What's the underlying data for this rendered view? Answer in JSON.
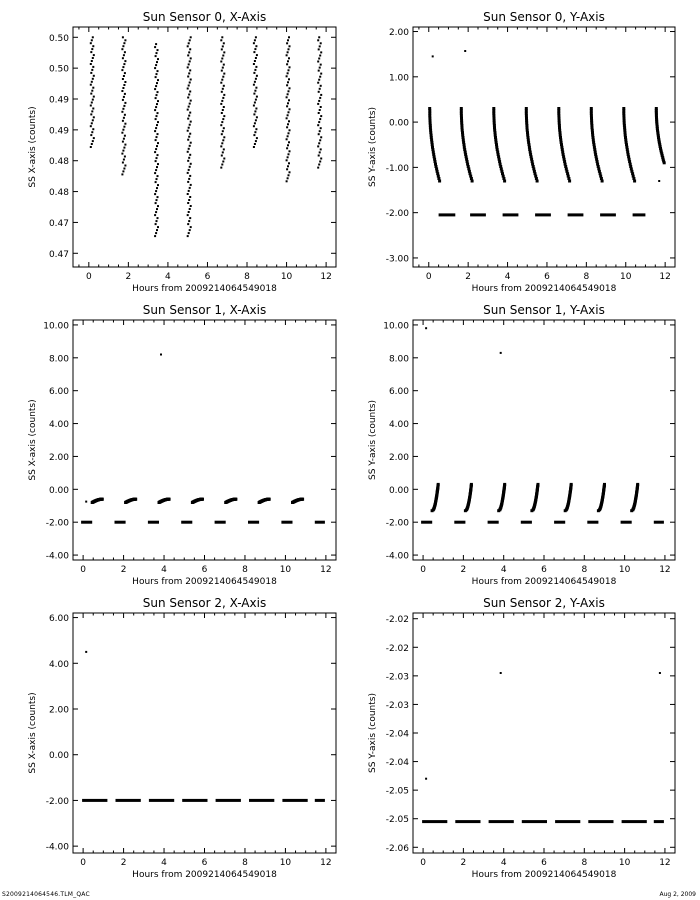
{
  "footer": {
    "file_label": "S2009214064546.TLM_QAC",
    "date_label": "Aug  2, 2009"
  },
  "chart_data": [
    {
      "type": "scatter",
      "title": "Sun Sensor 0, X-Axis",
      "xlabel": "Hours from  2009214064549018",
      "ylabel": "SS X-axis (counts)",
      "xlim": [
        -0.8,
        12.5
      ],
      "xticks": [
        0,
        2,
        4,
        6,
        8,
        10,
        12
      ],
      "ylim": [
        0.466,
        0.501
      ],
      "yticks": [
        0.468,
        0.4725,
        0.477,
        0.4815,
        0.486,
        0.4905,
        0.495,
        0.4995
      ],
      "yticklabels": [
        "0.47",
        "0.47",
        "0.48",
        "0.48",
        "0.49",
        "0.49",
        "0.50",
        "0.50"
      ],
      "segments": [
        {
          "kind": "vertical",
          "x0": 0.1,
          "x1": 0.25,
          "y0": 0.4835,
          "y1": 0.4995
        },
        {
          "kind": "vertical",
          "x0": 1.7,
          "x1": 1.85,
          "y0": 0.4795,
          "y1": 0.4995
        },
        {
          "kind": "vertical",
          "x0": 3.35,
          "x1": 3.5,
          "y0": 0.4705,
          "y1": 0.4985
        },
        {
          "kind": "vertical",
          "x0": 5.0,
          "x1": 5.15,
          "y0": 0.4705,
          "y1": 0.4995
        },
        {
          "kind": "vertical",
          "x0": 6.7,
          "x1": 6.85,
          "y0": 0.4805,
          "y1": 0.4995
        },
        {
          "kind": "vertical",
          "x0": 8.35,
          "x1": 8.5,
          "y0": 0.4835,
          "y1": 0.4995
        },
        {
          "kind": "vertical",
          "x0": 10.0,
          "x1": 10.15,
          "y0": 0.4785,
          "y1": 0.4995
        },
        {
          "kind": "vertical",
          "x0": 11.6,
          "x1": 11.75,
          "y0": 0.4805,
          "y1": 0.4995
        }
      ],
      "points": []
    },
    {
      "type": "scatter",
      "title": "Sun Sensor 0, Y-Axis",
      "xlabel": "Hours from  2009214064549018",
      "ylabel": "SS Y-axis (counts)",
      "xlim": [
        -0.8,
        12.5
      ],
      "xticks": [
        0,
        2,
        4,
        6,
        8,
        10,
        12
      ],
      "ylim": [
        -3.2,
        2.1
      ],
      "yticks": [
        -3,
        -2,
        -1,
        0,
        1,
        2
      ],
      "yticklabels": [
        "-3.00",
        "-2.00",
        "-1.00",
        "0.00",
        "1.00",
        "2.00"
      ],
      "segments": [
        {
          "kind": "curve",
          "x0": 0.05,
          "x1": 0.55,
          "y0": 0.3,
          "y1": -1.3
        },
        {
          "kind": "curve",
          "x0": 1.65,
          "x1": 2.2,
          "y0": 0.3,
          "y1": -1.3
        },
        {
          "kind": "curve",
          "x0": 3.3,
          "x1": 3.85,
          "y0": 0.3,
          "y1": -1.3
        },
        {
          "kind": "curve",
          "x0": 4.95,
          "x1": 5.5,
          "y0": 0.3,
          "y1": -1.3
        },
        {
          "kind": "curve",
          "x0": 6.6,
          "x1": 7.15,
          "y0": 0.3,
          "y1": -1.3
        },
        {
          "kind": "curve",
          "x0": 8.25,
          "x1": 8.8,
          "y0": 0.3,
          "y1": -1.3
        },
        {
          "kind": "curve",
          "x0": 9.9,
          "x1": 10.45,
          "y0": 0.3,
          "y1": -1.3
        },
        {
          "kind": "curve",
          "x0": 11.55,
          "x1": 11.95,
          "y0": 0.3,
          "y1": -0.9
        },
        {
          "kind": "dash",
          "x0": 0.5,
          "x1": 1.35,
          "y0": -2.05,
          "y1": -2.05
        },
        {
          "kind": "dash",
          "x0": 2.1,
          "x1": 2.9,
          "y0": -2.05,
          "y1": -2.05
        },
        {
          "kind": "dash",
          "x0": 3.75,
          "x1": 4.55,
          "y0": -2.05,
          "y1": -2.05
        },
        {
          "kind": "dash",
          "x0": 5.4,
          "x1": 6.2,
          "y0": -2.05,
          "y1": -2.05
        },
        {
          "kind": "dash",
          "x0": 7.05,
          "x1": 7.85,
          "y0": -2.05,
          "y1": -2.05
        },
        {
          "kind": "dash",
          "x0": 8.7,
          "x1": 9.5,
          "y0": -2.05,
          "y1": -2.05
        },
        {
          "kind": "dash",
          "x0": 10.35,
          "x1": 11.0,
          "y0": -2.05,
          "y1": -2.05
        }
      ],
      "points": [
        [
          0.2,
          1.45
        ],
        [
          1.85,
          1.57
        ],
        [
          11.7,
          -1.3
        ]
      ]
    },
    {
      "type": "scatter",
      "title": "Sun Sensor 1, X-Axis",
      "xlabel": "Hours from  2009214064549018",
      "ylabel": "SS X-axis (counts)",
      "xlim": [
        -0.5,
        12.5
      ],
      "xticks": [
        0,
        2,
        4,
        6,
        8,
        10,
        12
      ],
      "ylim": [
        -4.3,
        10.3
      ],
      "yticks": [
        -4,
        -2,
        0,
        2,
        4,
        6,
        8,
        10
      ],
      "yticklabels": [
        "-4.00",
        "-2.00",
        "0.00",
        "2.00",
        "4.00",
        "6.00",
        "8.00",
        "10.00"
      ],
      "segments": [
        {
          "kind": "arc",
          "x0": 0.45,
          "x1": 0.95,
          "y0": -0.8,
          "y1": -0.6
        },
        {
          "kind": "arc",
          "x0": 2.1,
          "x1": 2.6,
          "y0": -0.8,
          "y1": -0.6
        },
        {
          "kind": "arc",
          "x0": 3.75,
          "x1": 4.25,
          "y0": -0.8,
          "y1": -0.6
        },
        {
          "kind": "arc",
          "x0": 5.4,
          "x1": 5.9,
          "y0": -0.8,
          "y1": -0.6
        },
        {
          "kind": "arc",
          "x0": 7.05,
          "x1": 7.55,
          "y0": -0.8,
          "y1": -0.6
        },
        {
          "kind": "arc",
          "x0": 8.7,
          "x1": 9.2,
          "y0": -0.8,
          "y1": -0.6
        },
        {
          "kind": "arc",
          "x0": 10.35,
          "x1": 10.85,
          "y0": -0.8,
          "y1": -0.6
        },
        {
          "kind": "dash",
          "x0": -0.1,
          "x1": 0.45,
          "y0": -2.0,
          "y1": -2.0
        },
        {
          "kind": "dash",
          "x0": 1.55,
          "x1": 2.1,
          "y0": -2.0,
          "y1": -2.0
        },
        {
          "kind": "dash",
          "x0": 3.2,
          "x1": 3.75,
          "y0": -2.0,
          "y1": -2.0
        },
        {
          "kind": "dash",
          "x0": 4.85,
          "x1": 5.4,
          "y0": -2.0,
          "y1": -2.0
        },
        {
          "kind": "dash",
          "x0": 6.5,
          "x1": 7.05,
          "y0": -2.0,
          "y1": -2.0
        },
        {
          "kind": "dash",
          "x0": 8.15,
          "x1": 8.7,
          "y0": -2.0,
          "y1": -2.0
        },
        {
          "kind": "dash",
          "x0": 9.8,
          "x1": 10.35,
          "y0": -2.0,
          "y1": -2.0
        },
        {
          "kind": "dash",
          "x0": 11.45,
          "x1": 11.95,
          "y0": -2.0,
          "y1": -2.0
        }
      ],
      "points": [
        [
          3.85,
          8.2
        ],
        [
          0.15,
          -0.75
        ]
      ]
    },
    {
      "type": "scatter",
      "title": "Sun Sensor 1, Y-Axis",
      "xlabel": "Hours from  2009214064549018",
      "ylabel": "SS Y-axis (counts)",
      "xlim": [
        -0.5,
        12.5
      ],
      "xticks": [
        0,
        2,
        4,
        6,
        8,
        10,
        12
      ],
      "ylim": [
        -4.3,
        10.3
      ],
      "yticks": [
        -4,
        -2,
        0,
        2,
        4,
        6,
        8,
        10
      ],
      "yticklabels": [
        "-4.00",
        "-2.00",
        "0.00",
        "2.00",
        "4.00",
        "6.00",
        "8.00",
        "10.00"
      ],
      "segments": [
        {
          "kind": "rise",
          "x0": 0.45,
          "x1": 0.75,
          "y0": -1.3,
          "y1": 0.3
        },
        {
          "kind": "rise",
          "x0": 2.1,
          "x1": 2.4,
          "y0": -1.3,
          "y1": 0.3
        },
        {
          "kind": "rise",
          "x0": 3.75,
          "x1": 4.05,
          "y0": -1.3,
          "y1": 0.3
        },
        {
          "kind": "rise",
          "x0": 5.4,
          "x1": 5.7,
          "y0": -1.3,
          "y1": 0.3
        },
        {
          "kind": "rise",
          "x0": 7.05,
          "x1": 7.35,
          "y0": -1.3,
          "y1": 0.3
        },
        {
          "kind": "rise",
          "x0": 8.7,
          "x1": 9.0,
          "y0": -1.3,
          "y1": 0.3
        },
        {
          "kind": "rise",
          "x0": 10.35,
          "x1": 10.65,
          "y0": -1.3,
          "y1": 0.3
        },
        {
          "kind": "dash",
          "x0": -0.1,
          "x1": 0.45,
          "y0": -2.0,
          "y1": -2.0
        },
        {
          "kind": "dash",
          "x0": 1.55,
          "x1": 2.1,
          "y0": -2.0,
          "y1": -2.0
        },
        {
          "kind": "dash",
          "x0": 3.2,
          "x1": 3.75,
          "y0": -2.0,
          "y1": -2.0
        },
        {
          "kind": "dash",
          "x0": 4.85,
          "x1": 5.4,
          "y0": -2.0,
          "y1": -2.0
        },
        {
          "kind": "dash",
          "x0": 6.5,
          "x1": 7.05,
          "y0": -2.0,
          "y1": -2.0
        },
        {
          "kind": "dash",
          "x0": 8.15,
          "x1": 8.7,
          "y0": -2.0,
          "y1": -2.0
        },
        {
          "kind": "dash",
          "x0": 9.8,
          "x1": 10.35,
          "y0": -2.0,
          "y1": -2.0
        },
        {
          "kind": "dash",
          "x0": 11.45,
          "x1": 11.95,
          "y0": -2.0,
          "y1": -2.0
        }
      ],
      "points": [
        [
          0.15,
          9.8
        ],
        [
          3.85,
          8.3
        ]
      ]
    },
    {
      "type": "scatter",
      "title": "Sun Sensor 2, X-Axis",
      "xlabel": "Hours from  2009214064549018",
      "ylabel": "SS X-axis (counts)",
      "xlim": [
        -0.5,
        12.5
      ],
      "xticks": [
        0,
        2,
        4,
        6,
        8,
        10,
        12
      ],
      "ylim": [
        -4.3,
        6.2
      ],
      "yticks": [
        -4,
        -2,
        0,
        2,
        4,
        6
      ],
      "yticklabels": [
        "-4.00",
        "-2.00",
        "0.00",
        "2.00",
        "4.00",
        "6.00"
      ],
      "segments": [
        {
          "kind": "dash",
          "x0": -0.05,
          "x1": 1.2,
          "y0": -2.0,
          "y1": -2.0
        },
        {
          "kind": "dash",
          "x0": 1.6,
          "x1": 2.85,
          "y0": -2.0,
          "y1": -2.0
        },
        {
          "kind": "dash",
          "x0": 3.25,
          "x1": 4.5,
          "y0": -2.0,
          "y1": -2.0
        },
        {
          "kind": "dash",
          "x0": 4.9,
          "x1": 6.15,
          "y0": -2.0,
          "y1": -2.0
        },
        {
          "kind": "dash",
          "x0": 6.55,
          "x1": 7.8,
          "y0": -2.0,
          "y1": -2.0
        },
        {
          "kind": "dash",
          "x0": 8.2,
          "x1": 9.45,
          "y0": -2.0,
          "y1": -2.0
        },
        {
          "kind": "dash",
          "x0": 9.85,
          "x1": 11.1,
          "y0": -2.0,
          "y1": -2.0
        },
        {
          "kind": "dash",
          "x0": 11.45,
          "x1": 11.95,
          "y0": -2.0,
          "y1": -2.0
        }
      ],
      "points": [
        [
          0.15,
          4.5
        ]
      ]
    },
    {
      "type": "scatter",
      "title": "Sun Sensor 2, Y-Axis",
      "xlabel": "Hours from  2009214064549018",
      "ylabel": "SS Y-axis (counts)",
      "xlim": [
        -0.5,
        12.5
      ],
      "xticks": [
        0,
        2,
        4,
        6,
        8,
        10,
        12
      ],
      "ylim": [
        -2.061,
        -2.019
      ],
      "yticks": [
        -2.06,
        -2.055,
        -2.05,
        -2.045,
        -2.04,
        -2.035,
        -2.03,
        -2.025,
        -2.02
      ],
      "yticklabels": [
        "-2.06",
        "-2.05",
        "-2.05",
        "-2.04",
        "-2.04",
        "-2.03",
        "-2.03",
        "-2.02",
        "-2.02"
      ],
      "segments": [
        {
          "kind": "dash",
          "x0": -0.05,
          "x1": 1.2,
          "y0": -2.0555,
          "y1": -2.0555
        },
        {
          "kind": "dash",
          "x0": 1.6,
          "x1": 2.85,
          "y0": -2.0555,
          "y1": -2.0555
        },
        {
          "kind": "dash",
          "x0": 3.25,
          "x1": 4.5,
          "y0": -2.0555,
          "y1": -2.0555
        },
        {
          "kind": "dash",
          "x0": 4.9,
          "x1": 6.15,
          "y0": -2.0555,
          "y1": -2.0555
        },
        {
          "kind": "dash",
          "x0": 6.55,
          "x1": 7.8,
          "y0": -2.0555,
          "y1": -2.0555
        },
        {
          "kind": "dash",
          "x0": 8.2,
          "x1": 9.45,
          "y0": -2.0555,
          "y1": -2.0555
        },
        {
          "kind": "dash",
          "x0": 9.85,
          "x1": 11.1,
          "y0": -2.0555,
          "y1": -2.0555
        },
        {
          "kind": "dash",
          "x0": 11.45,
          "x1": 11.95,
          "y0": -2.0555,
          "y1": -2.0555
        }
      ],
      "points": [
        [
          0.15,
          -2.048
        ],
        [
          3.85,
          -2.0295
        ],
        [
          11.75,
          -2.0295
        ]
      ]
    }
  ]
}
